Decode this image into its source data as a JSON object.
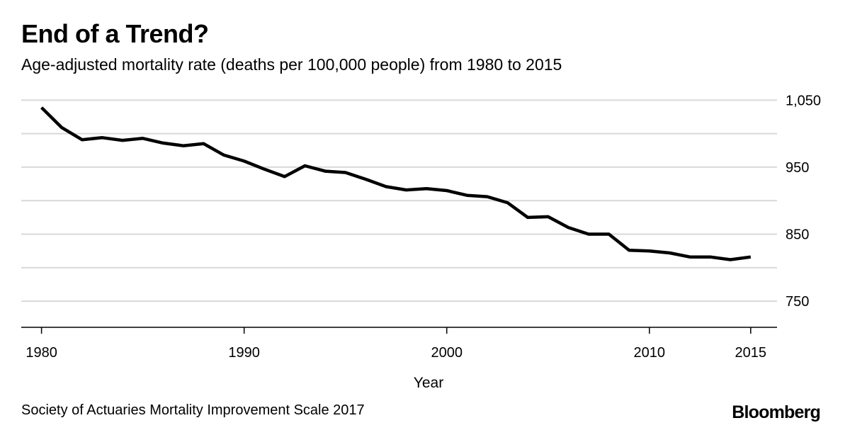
{
  "title": "End of a Trend?",
  "subtitle": "Age-adjusted mortality rate (deaths per 100,000 people) from 1980 to 2015",
  "source": "Society of Actuaries Mortality Improvement Scale 2017",
  "brand": "Bloomberg",
  "colors": {
    "line": "#000000",
    "grid": "#d9d9d9",
    "axis": "#000000"
  },
  "chart_data": {
    "type": "line",
    "xlabel": "Year",
    "ylabel": "",
    "xlim": [
      1979,
      2016.3
    ],
    "ylim": [
      711,
      1062
    ],
    "y_axis_side": "right",
    "grid": true,
    "x_ticks": [
      {
        "value": 1980,
        "label": "1980"
      },
      {
        "value": 1990,
        "label": "1990"
      },
      {
        "value": 2000,
        "label": "2000"
      },
      {
        "value": 2010,
        "label": "2010"
      },
      {
        "value": 2015,
        "label": "2015"
      }
    ],
    "y_ticks": [
      {
        "value": 1050,
        "label": "1,050"
      },
      {
        "value": 950,
        "label": "950"
      },
      {
        "value": 850,
        "label": "850"
      },
      {
        "value": 750,
        "label": "750"
      }
    ],
    "y_gridlines": [
      1050,
      1000,
      950,
      900,
      850,
      800,
      750
    ],
    "x": [
      1980,
      1981,
      1982,
      1983,
      1984,
      1985,
      1986,
      1987,
      1988,
      1989,
      1990,
      1991,
      1992,
      1993,
      1994,
      1995,
      1996,
      1997,
      1998,
      1999,
      2000,
      2001,
      2002,
      2003,
      2004,
      2005,
      2006,
      2007,
      2008,
      2009,
      2010,
      2011,
      2012,
      2013,
      2014,
      2015
    ],
    "series": [
      {
        "values": [
          1039,
          1009,
          991,
          994,
          990,
          993,
          986,
          982,
          985,
          968,
          959,
          947,
          936,
          952,
          944,
          942,
          932,
          921,
          916,
          918,
          915,
          908,
          906,
          897,
          875,
          876,
          860,
          850,
          850,
          826,
          825,
          822,
          816,
          816,
          812,
          816
        ]
      }
    ]
  }
}
